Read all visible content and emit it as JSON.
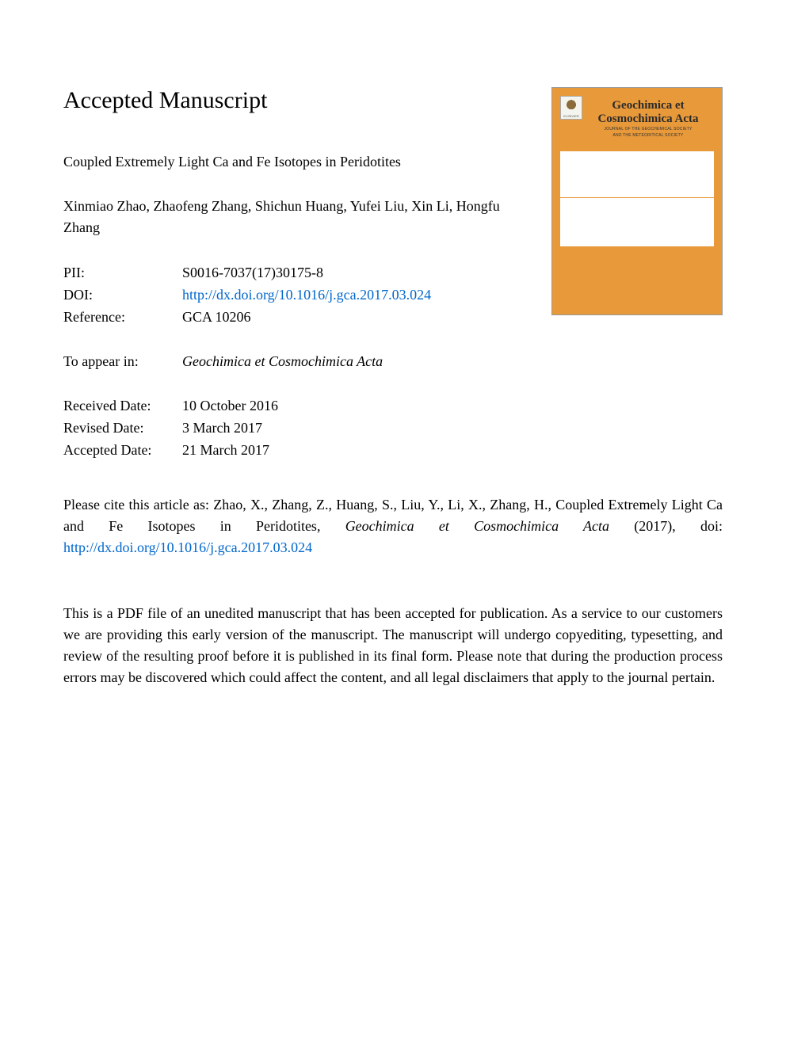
{
  "heading": "Accepted Manuscript",
  "article_title": "Coupled Extremely Light Ca and Fe Isotopes in Peridotites",
  "authors": "Xinmiao Zhao, Zhaofeng Zhang, Shichun Huang, Yufei Liu, Xin Li, Hongfu Zhang",
  "meta": {
    "pii_label": "PII:",
    "pii_value": "S0016-7037(17)30175-8",
    "doi_label": "DOI:",
    "doi_value": "http://dx.doi.org/10.1016/j.gca.2017.03.024",
    "reference_label": "Reference:",
    "reference_value": "GCA 10206",
    "appearin_label": "To appear in:",
    "appearin_value": "Geochimica et Cosmochimica Acta",
    "received_label": "Received Date:",
    "received_value": "10 October 2016",
    "revised_label": "Revised Date:",
    "revised_value": "3 March 2017",
    "accepted_label": "Accepted Date:",
    "accepted_value": "21 March 2017"
  },
  "citation": {
    "prefix": "Please cite this article as: Zhao, X., Zhang, Z., Huang, S., Liu, Y., Li, X., Zhang, H., Coupled Extremely Light Ca and Fe Isotopes in Peridotites, ",
    "journal": "Geochimica et Cosmochimica Acta",
    "mid": " (2017), doi: ",
    "doi_link": "http://dx.doi.org/10.1016/j.gca.2017.03.024"
  },
  "disclaimer": "This is a PDF file of an unedited manuscript that has been accepted for publication. As a service to our customers we are providing this early version of the manuscript. The manuscript will undergo copyediting, typesetting, and review of the resulting proof before it is published in its final form. Please note that during the production process errors may be discovered which could affect the content, and all legal disclaimers that apply to the journal pertain.",
  "cover": {
    "journal_line1": "Geochimica et",
    "journal_line2": "Cosmochimica Acta",
    "subtitle_line1": "JOURNAL OF THE GEOCHEMICAL SOCIETY",
    "subtitle_line2": "AND THE METEORITICAL SOCIETY",
    "logo_text": "ELSEVIER",
    "background_color": "#e8993a",
    "white_panel_color": "#ffffff"
  },
  "colors": {
    "link": "#0066cc",
    "text": "#000000",
    "page_bg": "#ffffff"
  }
}
